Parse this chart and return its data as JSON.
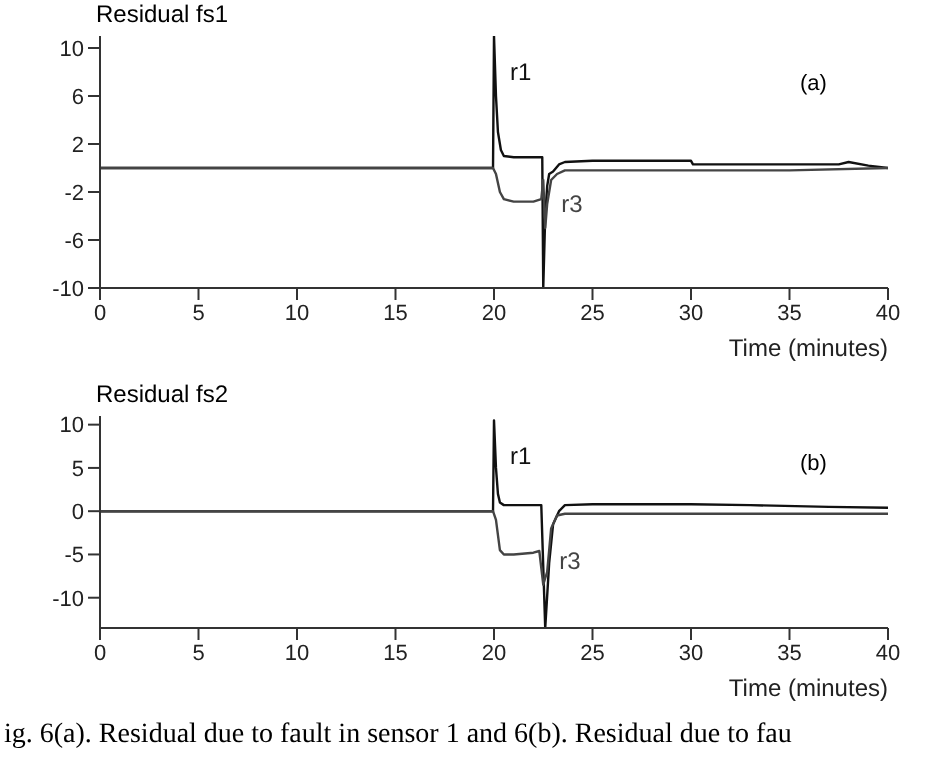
{
  "chart_data": [
    {
      "type": "line",
      "ylabel": "Residual fs1",
      "xlabel": "Time (minutes)",
      "annotations": [
        "(a)"
      ],
      "xlim": [
        0,
        40
      ],
      "xticks": [
        0,
        5,
        10,
        15,
        20,
        25,
        30,
        35,
        40
      ],
      "ylim": [
        -10,
        11
      ],
      "yticks": [
        -10,
        -6,
        -2,
        2,
        6,
        10
      ],
      "tick_labels": "xy",
      "series": [
        {
          "name": "r1",
          "color": "#111111",
          "x": [
            0,
            19.95,
            20,
            20.1,
            20.2,
            20.35,
            20.5,
            21,
            22,
            22.45,
            22.5,
            22.6,
            22.7,
            22.8,
            23,
            23.3,
            23.6,
            25,
            30,
            30.1,
            31,
            35,
            37.5,
            38,
            39,
            40
          ],
          "values": [
            0,
            0,
            11,
            6,
            3,
            1.5,
            1,
            0.9,
            0.9,
            0.9,
            -10,
            -4,
            -1.5,
            -0.5,
            -0.3,
            0.3,
            0.5,
            0.6,
            0.6,
            0.3,
            0.3,
            0.3,
            0.3,
            0.5,
            0.2,
            0
          ]
        },
        {
          "name": "r3",
          "color": "#444444",
          "x": [
            0,
            19.95,
            20.1,
            20.3,
            20.5,
            21,
            22,
            22.4,
            22.5,
            22.6,
            22.7,
            22.9,
            23.2,
            23.6,
            25,
            30,
            35,
            40
          ],
          "values": [
            0,
            0,
            -0.5,
            -2,
            -2.6,
            -2.8,
            -2.8,
            -2.6,
            -1,
            -5,
            -3,
            -1,
            -0.5,
            -0.2,
            -0.2,
            -0.2,
            -0.2,
            0
          ]
        }
      ]
    },
    {
      "type": "line",
      "ylabel": "Residual fs2",
      "xlabel": "Time (minutes)",
      "annotations": [
        "(b)",
        "ig. 6(a). Residual due to fault in sensor 1 and 6(b). Residual due to fau"
      ],
      "xlim": [
        0,
        40
      ],
      "xticks": [
        0,
        5,
        10,
        15,
        20,
        25,
        30,
        35,
        40
      ],
      "ylim": [
        -13.5,
        11
      ],
      "yticks": [
        -10,
        -5,
        0,
        5,
        10
      ],
      "tick_labels": "xy",
      "series": [
        {
          "name": "r1",
          "color": "#111111",
          "x": [
            0,
            19.95,
            20,
            20.1,
            20.2,
            20.3,
            20.5,
            21,
            22,
            22.4,
            22.6,
            22.8,
            23,
            23.3,
            23.6,
            25,
            30,
            33,
            37,
            40
          ],
          "values": [
            0,
            0,
            10.5,
            5,
            2,
            1,
            0.7,
            0.7,
            0.7,
            0.7,
            -13.5,
            -6,
            -1.5,
            0,
            0.7,
            0.8,
            0.8,
            0.7,
            0.5,
            0.4
          ]
        },
        {
          "name": "r3",
          "color": "#444444",
          "x": [
            0,
            19.95,
            20.1,
            20.3,
            20.5,
            21,
            22,
            22.3,
            22.5,
            22.7,
            22.9,
            23.2,
            23.6,
            25,
            30,
            35,
            40
          ],
          "values": [
            0,
            0,
            -1,
            -4.5,
            -5,
            -5,
            -4.8,
            -4.6,
            -8.5,
            -7,
            -2,
            -0.5,
            -0.3,
            -0.3,
            -0.3,
            -0.3,
            -0.3
          ]
        }
      ]
    }
  ]
}
